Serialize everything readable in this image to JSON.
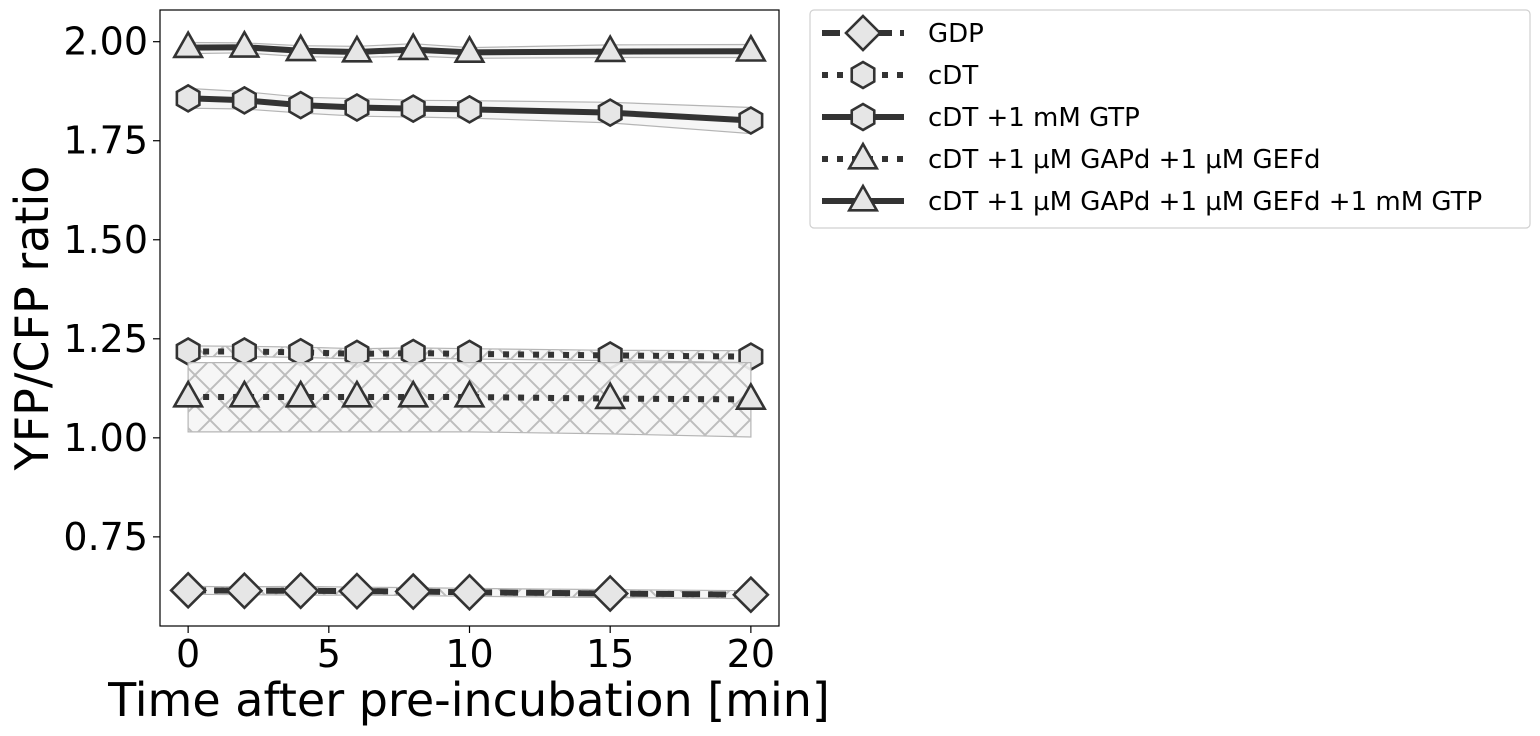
{
  "chart_data": {
    "type": "line",
    "xlabel": "Time after pre-incubation [min]",
    "ylabel": "YFP/CFP ratio",
    "xlim": [
      -1,
      21
    ],
    "ylim": [
      0.525,
      2.08
    ],
    "xticks": [
      "0",
      "5",
      "10",
      "15",
      "20"
    ],
    "yticks": [
      "0.75",
      "1.00",
      "1.25",
      "1.50",
      "1.75",
      "2.00"
    ],
    "x": [
      0,
      2,
      4,
      6,
      8,
      10,
      15,
      20
    ],
    "grid": false,
    "legend_position": "outside top-right",
    "series": [
      {
        "name": "GDP",
        "marker": "diamond",
        "linestyle": "dashed",
        "values": [
          0.615,
          0.614,
          0.614,
          0.613,
          0.612,
          0.61,
          0.607,
          0.604
        ],
        "band_lower": [
          0.605,
          0.604,
          0.603,
          0.603,
          0.602,
          0.6,
          0.597,
          0.594
        ],
        "band_upper": [
          0.625,
          0.624,
          0.625,
          0.623,
          0.622,
          0.62,
          0.617,
          0.614
        ]
      },
      {
        "name": "cDT",
        "marker": "hexagon",
        "linestyle": "dotted",
        "values": [
          1.218,
          1.218,
          1.216,
          1.212,
          1.214,
          1.212,
          1.208,
          1.205
        ],
        "band_lower": [
          1.205,
          1.205,
          1.203,
          1.199,
          1.201,
          1.199,
          1.195,
          1.19
        ],
        "band_upper": [
          1.232,
          1.231,
          1.229,
          1.225,
          1.227,
          1.225,
          1.221,
          1.22
        ]
      },
      {
        "name": "cDT +1 mM GTP",
        "marker": "hexagon",
        "linestyle": "solid",
        "values": [
          1.857,
          1.852,
          1.84,
          1.834,
          1.831,
          1.829,
          1.821,
          1.801
        ],
        "band_lower": [
          1.832,
          1.83,
          1.82,
          1.812,
          1.81,
          1.807,
          1.795,
          1.768
        ],
        "band_upper": [
          1.882,
          1.874,
          1.86,
          1.856,
          1.852,
          1.851,
          1.847,
          1.834
        ]
      },
      {
        "name": "cDT +1 µM GAPd +1 µM GEFd",
        "marker": "triangle",
        "linestyle": "dotted",
        "values": [
          1.103,
          1.103,
          1.103,
          1.103,
          1.103,
          1.103,
          1.099,
          1.097
        ],
        "band_lower": [
          1.015,
          1.015,
          1.015,
          1.015,
          1.015,
          1.015,
          1.01,
          1.002
        ],
        "band_upper": [
          1.19,
          1.19,
          1.19,
          1.19,
          1.19,
          1.19,
          1.19,
          1.19
        ]
      },
      {
        "name": "cDT +1 µM GAPd +1 µM GEFd +1 mM GTP",
        "marker": "triangle",
        "linestyle": "solid",
        "values": [
          1.985,
          1.986,
          1.977,
          1.974,
          1.98,
          1.973,
          1.975,
          1.976
        ],
        "band_lower": [
          1.97,
          1.972,
          1.962,
          1.96,
          1.964,
          1.958,
          1.96,
          1.96
        ],
        "band_upper": [
          1.998,
          1.997,
          1.99,
          1.988,
          1.995,
          1.985,
          1.992,
          1.993
        ]
      }
    ]
  }
}
